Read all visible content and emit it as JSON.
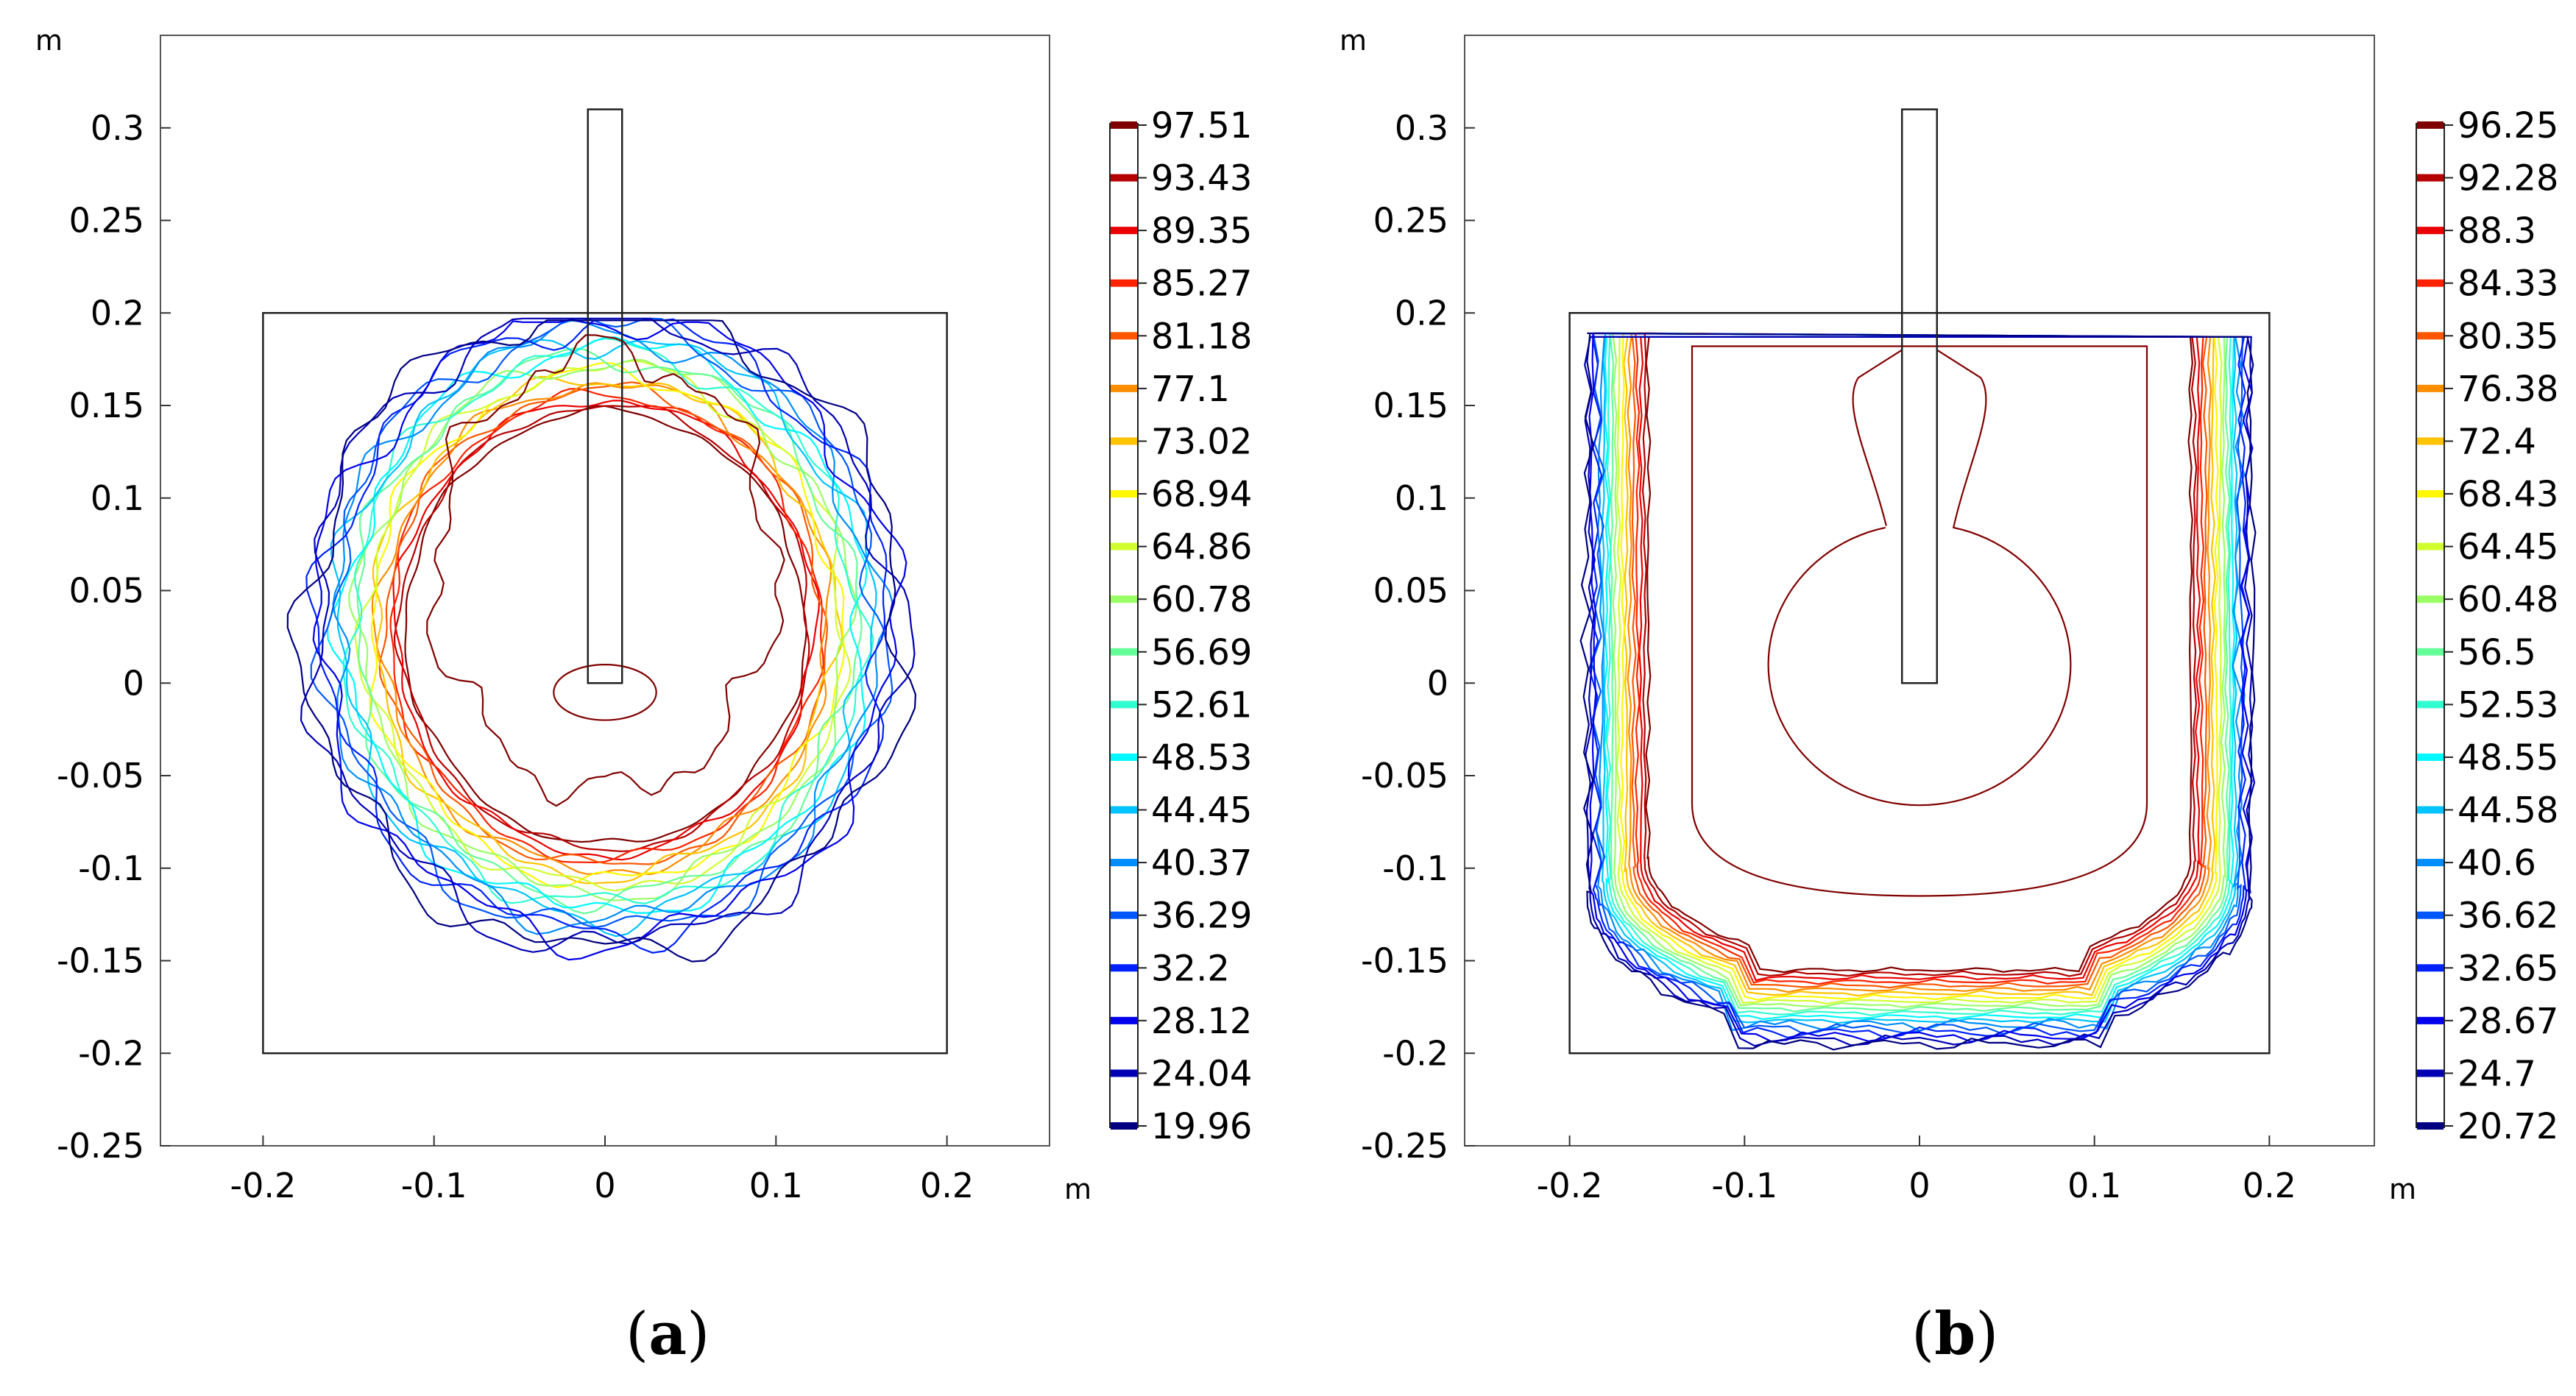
{
  "chart_data": [
    {
      "type": "contour",
      "panel_label": "a",
      "x_unit": "m",
      "y_unit": "m",
      "xlim": [
        -0.26,
        0.26
      ],
      "ylim": [
        -0.25,
        0.35
      ],
      "x_ticks": [
        "-0.2",
        "-0.1",
        "0",
        "0.1",
        "0.2"
      ],
      "x_tick_values": [
        -0.2,
        -0.1,
        0,
        0.1,
        0.2
      ],
      "y_ticks": [
        "0.3",
        "0.25",
        "0.2",
        "0.15",
        "0.1",
        "0.05",
        "0",
        "-0.05",
        "-0.1",
        "-0.15",
        "-0.2",
        "-0.25"
      ],
      "y_tick_values": [
        0.3,
        0.25,
        0.2,
        0.15,
        0.1,
        0.05,
        0,
        -0.05,
        -0.1,
        -0.15,
        -0.2,
        -0.25
      ],
      "colorbar_levels": [
        "97.51",
        "93.43",
        "89.35",
        "85.27",
        "81.18",
        "77.1",
        "73.02",
        "68.94",
        "64.86",
        "60.78",
        "56.69",
        "52.61",
        "48.53",
        "44.45",
        "40.37",
        "36.29",
        "32.2",
        "28.12",
        "24.04",
        "19.96"
      ],
      "domain_box": {
        "x": [
          -0.2,
          0.2
        ],
        "y": [
          -0.2,
          0.2
        ]
      },
      "probe_box": {
        "x": [
          -0.01,
          0.01
        ],
        "y": [
          0,
          0.31
        ]
      },
      "contour_shape": "ring",
      "ring_center": [
        0.0,
        0.03
      ],
      "hot_radii": [
        0.117,
        0.145
      ],
      "cold_radii": [
        0.145,
        0.175
      ]
    },
    {
      "type": "contour",
      "panel_label": "b",
      "x_unit": "m",
      "y_unit": "m",
      "xlim": [
        -0.26,
        0.26
      ],
      "ylim": [
        -0.25,
        0.35
      ],
      "x_ticks": [
        "-0.2",
        "-0.1",
        "0",
        "0.1",
        "0.2"
      ],
      "x_tick_values": [
        -0.2,
        -0.1,
        0,
        0.1,
        0.2
      ],
      "y_ticks": [
        "0.3",
        "0.25",
        "0.2",
        "0.15",
        "0.1",
        "0.05",
        "0",
        "-0.05",
        "-0.1",
        "-0.15",
        "-0.2",
        "-0.25"
      ],
      "y_tick_values": [
        0.3,
        0.25,
        0.2,
        0.15,
        0.1,
        0.05,
        0,
        -0.05,
        -0.1,
        -0.15,
        -0.2,
        -0.25
      ],
      "colorbar_levels": [
        "96.25",
        "92.28",
        "88.3",
        "84.33",
        "80.35",
        "76.38",
        "72.4",
        "68.43",
        "64.45",
        "60.48",
        "56.5",
        "52.53",
        "48.55",
        "44.58",
        "40.6",
        "36.62",
        "32.65",
        "28.67",
        "24.7",
        "20.72"
      ],
      "domain_box": {
        "x": [
          -0.2,
          0.2
        ],
        "y": [
          -0.2,
          0.2
        ]
      },
      "probe_box": {
        "x": [
          -0.01,
          0.01
        ],
        "y": [
          0,
          0.31
        ]
      },
      "contour_shape": "u-shape",
      "u_top": 0.187,
      "hot_half_width": [
        0.155,
        0.175
      ],
      "hot_bottom": [
        -0.175,
        -0.155
      ],
      "cold_half_width": [
        0.175,
        0.19
      ],
      "cold_bottom": [
        -0.195,
        -0.175
      ],
      "inner_blob": {
        "center": [
          0.0,
          0.01
        ],
        "radius": 0.08,
        "neck_top": 0.165
      },
      "inner_u": {
        "half_width": 0.13,
        "bottom": -0.115,
        "top": 0.182
      }
    }
  ],
  "captions": [
    {
      "open": "(",
      "label": "a",
      "close": ")"
    },
    {
      "open": "(",
      "label": "b",
      "close": ")"
    }
  ]
}
